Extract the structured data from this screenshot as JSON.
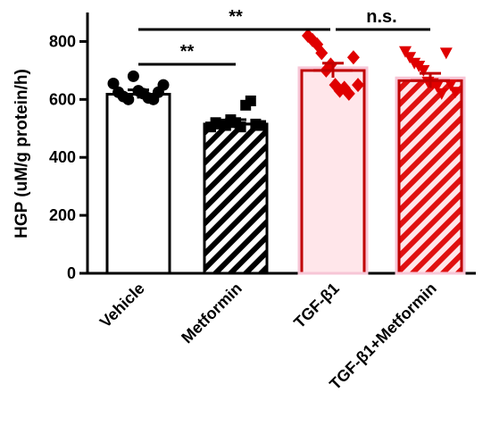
{
  "chart_data": {
    "type": "bar",
    "title": "",
    "xlabel": "",
    "ylabel": "HGP (uM/g protein/h)",
    "ylim": [
      0,
      900
    ],
    "yticks": [
      0,
      200,
      400,
      600,
      800
    ],
    "grid": false,
    "categories": [
      "Vehicle",
      "Metformin",
      "TGF-β1",
      "TGF-β1+Metformin"
    ],
    "values": [
      618,
      515,
      700,
      665
    ],
    "sem": [
      15,
      15,
      25,
      25
    ],
    "points": [
      [
        655,
        625,
        610,
        600,
        680,
        630,
        620,
        605,
        600,
        625,
        650
      ],
      [
        505,
        520,
        515,
        510,
        530,
        520,
        505,
        580,
        595,
        515,
        510
      ],
      [
        820,
        805,
        790,
        760,
        700,
        720,
        650,
        630,
        640,
        620,
        745,
        650
      ],
      [
        765,
        745,
        725,
        715,
        700,
        660,
        655,
        645,
        620,
        760,
        650,
        625
      ]
    ],
    "styles": [
      {
        "pattern": "none",
        "edge": "#000000",
        "face": "#ffffff",
        "marker": "circle",
        "marker_color": "#000000"
      },
      {
        "pattern": "hatch",
        "edge": "#000000",
        "face": "#ffffff",
        "marker": "square",
        "marker_color": "#000000"
      },
      {
        "pattern": "none",
        "edge": "#c00000",
        "face": "#ffe6ea",
        "marker": "diamond",
        "marker_color": "#e00000"
      },
      {
        "pattern": "hatch",
        "edge": "#c00000",
        "face": "#ffe6ea",
        "marker": "triangle-down",
        "marker_color": "#e00000"
      }
    ],
    "significance": [
      {
        "from": 0,
        "to": 2,
        "label": "**"
      },
      {
        "from": 0,
        "to": 1,
        "label": "**"
      },
      {
        "from": 2,
        "to": 3,
        "label": "n.s."
      }
    ]
  }
}
